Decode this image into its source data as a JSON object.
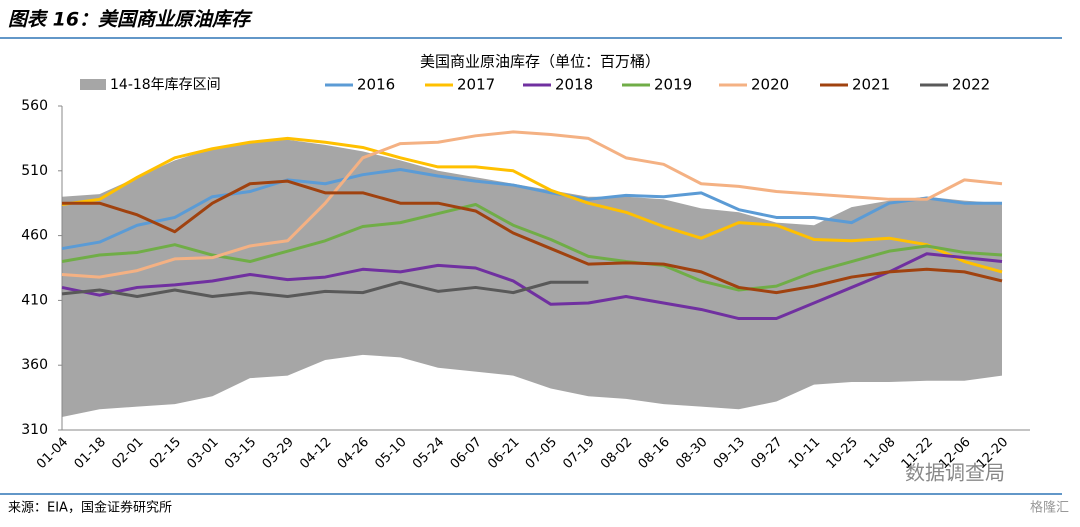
{
  "header": {
    "title": "图表 16：美国商业原油库存"
  },
  "chart_data": {
    "type": "line",
    "title": "美国商业原油库存（单位：百万桶）",
    "categories": [
      "01-04",
      "01-18",
      "02-01",
      "02-15",
      "03-01",
      "03-15",
      "03-29",
      "04-12",
      "04-26",
      "05-10",
      "05-24",
      "06-07",
      "06-21",
      "07-05",
      "07-19",
      "08-02",
      "08-16",
      "08-30",
      "09-13",
      "09-27",
      "10-11",
      "10-25",
      "11-08",
      "11-22",
      "12-06",
      "12-20"
    ],
    "band": {
      "name": "14-18年库存区间",
      "color": "#a6a6a6",
      "high": [
        490,
        492,
        505,
        518,
        527,
        532,
        534,
        530,
        525,
        518,
        510,
        505,
        500,
        495,
        490,
        490,
        488,
        481,
        478,
        470,
        468,
        482,
        487,
        490,
        487,
        485
      ],
      "low": [
        320,
        326,
        328,
        330,
        336,
        350,
        352,
        364,
        368,
        366,
        358,
        355,
        352,
        342,
        336,
        334,
        330,
        328,
        326,
        332,
        345,
        347,
        347,
        348,
        348,
        352
      ]
    },
    "series": [
      {
        "name": "2016",
        "color": "#5b9bd5",
        "values": [
          450,
          455,
          468,
          474,
          490,
          494,
          503,
          500,
          507,
          511,
          506,
          502,
          499,
          493,
          488,
          491,
          490,
          493,
          480,
          474,
          474,
          470,
          485,
          489,
          485,
          485
        ]
      },
      {
        "name": "2017",
        "color": "#ffc000",
        "values": [
          484,
          488,
          505,
          520,
          527,
          532,
          535,
          532,
          528,
          520,
          513,
          513,
          510,
          495,
          485,
          478,
          467,
          458,
          470,
          468,
          457,
          456,
          458,
          453,
          440,
          432
        ]
      },
      {
        "name": "2018",
        "color": "#7030a0",
        "values": [
          420,
          414,
          420,
          422,
          425,
          430,
          426,
          428,
          434,
          432,
          437,
          435,
          425,
          407,
          408,
          413,
          408,
          403,
          396,
          396,
          408,
          420,
          432,
          446,
          443,
          440
        ]
      },
      {
        "name": "2019",
        "color": "#70ad47",
        "values": [
          440,
          445,
          447,
          453,
          445,
          440,
          448,
          456,
          467,
          470,
          477,
          484,
          468,
          457,
          444,
          440,
          437,
          425,
          418,
          421,
          432,
          440,
          448,
          452,
          447,
          445
        ]
      },
      {
        "name": "2020",
        "color": "#f4b183",
        "values": [
          430,
          428,
          433,
          442,
          443,
          452,
          456,
          485,
          520,
          531,
          532,
          537,
          540,
          538,
          535,
          520,
          515,
          500,
          498,
          494,
          492,
          490,
          488,
          488,
          503,
          500
        ]
      },
      {
        "name": "2021",
        "color": "#a0420f",
        "values": [
          485,
          485,
          476,
          463,
          485,
          500,
          502,
          493,
          493,
          485,
          485,
          479,
          462,
          450,
          438,
          439,
          438,
          432,
          420,
          416,
          421,
          428,
          432,
          434,
          432,
          425
        ]
      },
      {
        "name": "2022",
        "color": "#595959",
        "values": [
          415,
          418,
          413,
          418,
          413,
          416,
          413,
          417,
          416,
          424,
          417,
          420,
          416,
          424,
          424,
          null,
          null,
          null,
          null,
          null,
          null,
          null,
          null,
          null,
          null,
          null
        ]
      }
    ],
    "ylim": [
      310,
      560
    ],
    "yticks": [
      310,
      360,
      410,
      460,
      510,
      560
    ]
  },
  "footer": {
    "source": "来源：EIA，国金证券研究所",
    "watermarks": [
      "数据调查局",
      "格隆汇"
    ]
  }
}
